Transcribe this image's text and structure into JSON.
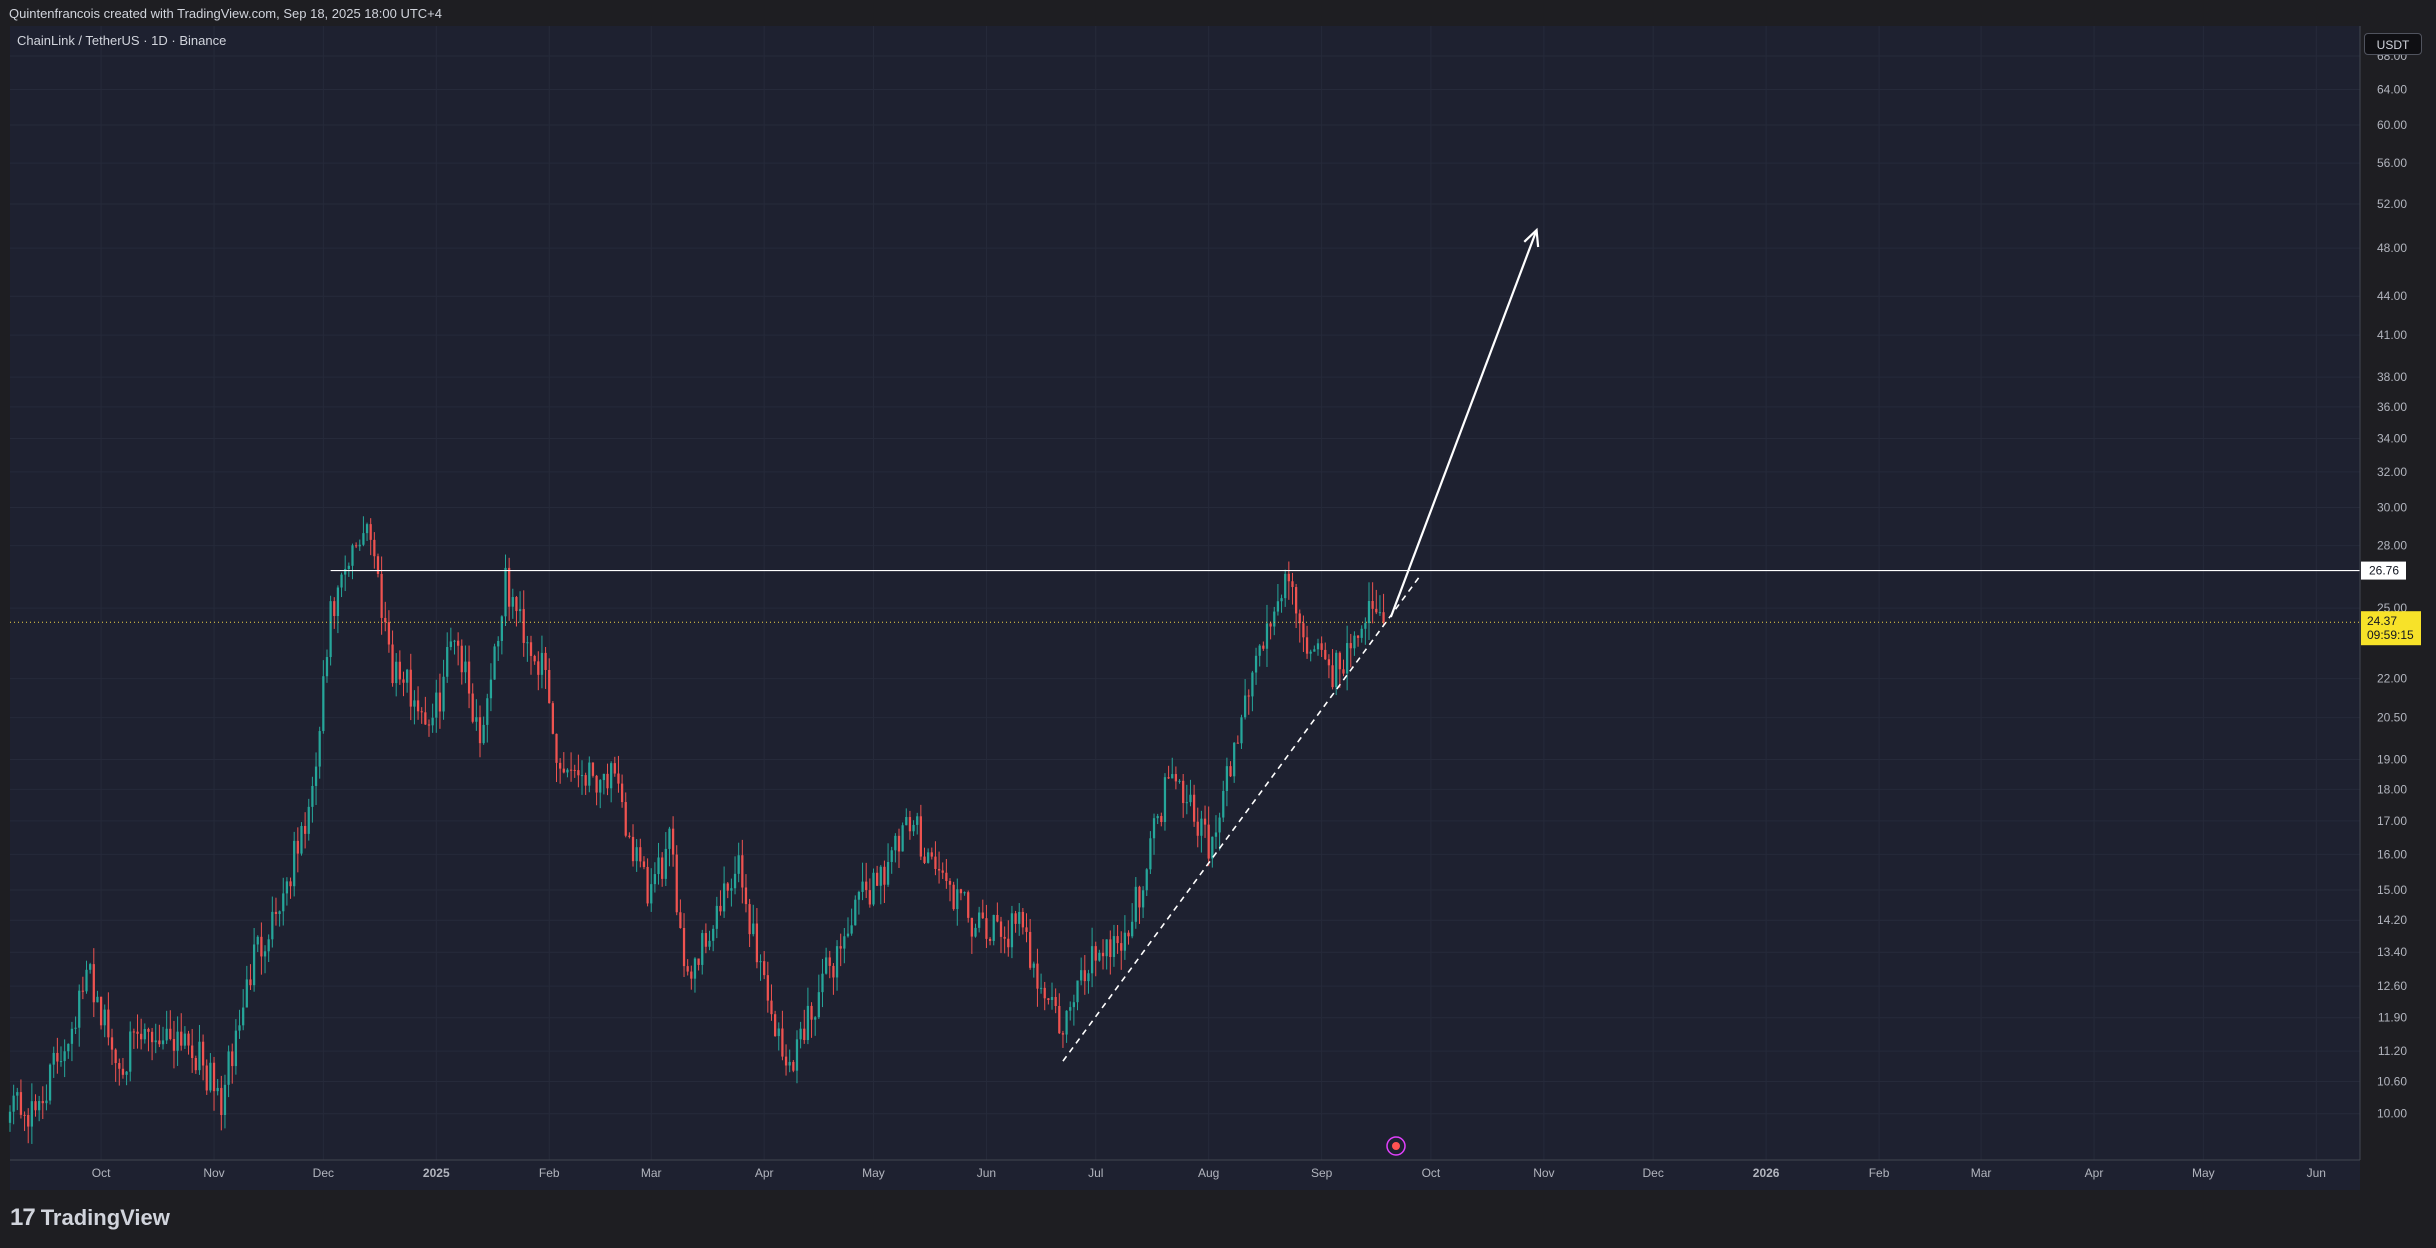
{
  "header": {
    "attribution": "Quintenfrancois created with TradingView.com, Sep 18, 2025 18:00 UTC+4"
  },
  "chart_title": "ChainLink / TetherUS · 1D · Binance",
  "currency": "USDT",
  "footer": {
    "logo_mark": "17",
    "logo_text": "TradingView"
  },
  "colors": {
    "background": "#1e2130",
    "up": "#26a69a",
    "down": "#ef5350",
    "price_tag": "#f7e229",
    "lines": "#ffffff"
  },
  "chart_data": {
    "type": "candlestick",
    "title": "ChainLink / TetherUS · 1D · Binance",
    "y_scale": "log",
    "ylim": [
      9.5,
      68.0
    ],
    "y_ticks": [
      "68.00",
      "64.00",
      "60.00",
      "56.00",
      "52.00",
      "48.00",
      "44.00",
      "41.00",
      "38.00",
      "36.00",
      "34.00",
      "32.00",
      "30.00",
      "28.00",
      "25.00",
      "22.00",
      "20.50",
      "19.00",
      "18.00",
      "17.00",
      "16.00",
      "15.00",
      "14.20",
      "13.40",
      "12.60",
      "11.90",
      "11.20",
      "10.60",
      "10.00"
    ],
    "x_labels": [
      "Oct",
      "Nov",
      "Dec",
      "2025",
      "Feb",
      "Mar",
      "Apr",
      "May",
      "Jun",
      "Jul",
      "Aug",
      "Sep",
      "Oct",
      "Nov",
      "Dec",
      "2026",
      "Feb",
      "Mar",
      "Apr",
      "May",
      "Jun"
    ],
    "x_range": [
      "2024-09-06",
      "2026-06-13"
    ],
    "price_path": [
      [
        "2024-09-06",
        10.4
      ],
      [
        "2024-09-12",
        9.9
      ],
      [
        "2024-09-20",
        11.2
      ],
      [
        "2024-09-28",
        12.9
      ],
      [
        "2024-10-05",
        11.0
      ],
      [
        "2024-10-14",
        11.5
      ],
      [
        "2024-10-24",
        11.6
      ],
      [
        "2024-11-03",
        10.2
      ],
      [
        "2024-11-12",
        13.3
      ],
      [
        "2024-11-20",
        14.9
      ],
      [
        "2024-11-28",
        17.6
      ],
      [
        "2024-12-03",
        24.5
      ],
      [
        "2024-12-13",
        29.5
      ],
      [
        "2024-12-20",
        22.6
      ],
      [
        "2024-12-31",
        20.2
      ],
      [
        "2025-01-06",
        24.2
      ],
      [
        "2025-01-13",
        19.8
      ],
      [
        "2025-01-20",
        26.0
      ],
      [
        "2025-01-31",
        22.0
      ],
      [
        "2025-02-03",
        18.9
      ],
      [
        "2025-02-18",
        18.4
      ],
      [
        "2025-02-28",
        14.8
      ],
      [
        "2025-03-06",
        16.2
      ],
      [
        "2025-03-11",
        12.9
      ],
      [
        "2025-03-25",
        15.5
      ],
      [
        "2025-04-07",
        10.8
      ],
      [
        "2025-04-16",
        12.5
      ],
      [
        "2025-04-28",
        14.8
      ],
      [
        "2025-05-12",
        16.9
      ],
      [
        "2025-05-20",
        15.3
      ],
      [
        "2025-05-31",
        13.8
      ],
      [
        "2025-06-10",
        14.0
      ],
      [
        "2025-06-22",
        11.6
      ],
      [
        "2025-06-30",
        13.4
      ],
      [
        "2025-07-10",
        13.9
      ],
      [
        "2025-07-22",
        19.0
      ],
      [
        "2025-07-27",
        17.6
      ],
      [
        "2025-08-02",
        16.1
      ],
      [
        "2025-08-13",
        22.4
      ],
      [
        "2025-08-22",
        26.2
      ],
      [
        "2025-08-30",
        22.8
      ],
      [
        "2025-09-06",
        22.3
      ],
      [
        "2025-09-12",
        24.7
      ],
      [
        "2025-09-18",
        24.37
      ]
    ],
    "annotations": {
      "resistance_level": 26.76,
      "current_price": "24.37",
      "countdown": "09:59:15",
      "resistance_label": "26.76",
      "trendline": [
        [
          "2025-06-22",
          11.0
        ],
        [
          "2025-09-28",
          26.5
        ]
      ],
      "arrow": [
        [
          "2025-09-20",
          24.6
        ],
        [
          "2025-10-30",
          49.6
        ]
      ]
    },
    "grid": true
  }
}
